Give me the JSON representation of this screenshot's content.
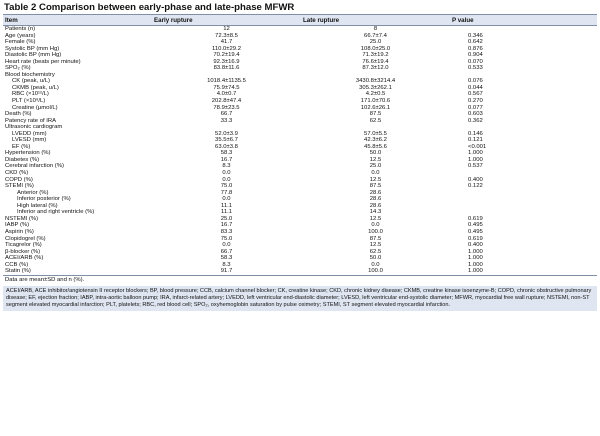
{
  "title": "Table 2 Comparison between early-phase and late-phase MFWR",
  "headers": [
    "Item",
    "Early rupture",
    "Late rupture",
    "P value"
  ],
  "rows": [
    {
      "label": "Patients (n)",
      "early": "12",
      "late": "8",
      "p": "",
      "indent": 0
    },
    {
      "label": "Age (years)",
      "early": "72.3±8.5",
      "late": "66.7±7.4",
      "p": "0.346",
      "indent": 0
    },
    {
      "label": "Female (%)",
      "early": "41.7",
      "late": "25.0",
      "p": "0.642",
      "indent": 0
    },
    {
      "label": "Systolic BP (mm Hg)",
      "early": "110.0±29.2",
      "late": "108.0±25.0",
      "p": "0.876",
      "indent": 0
    },
    {
      "label": "Diastolic BP (mm Hg)",
      "early": "70.2±19.4",
      "late": "71.3±19.2",
      "p": "0.904",
      "indent": 0
    },
    {
      "label": "Heart rate (beats per minute)",
      "early": "92.3±16.9",
      "late": "76.6±19.4",
      "p": "0.070",
      "indent": 0
    },
    {
      "label": "SPO₂ (%)",
      "early": "83.8±11.6",
      "late": "87.3±12.0",
      "p": "0.533",
      "indent": 0
    },
    {
      "label": "Blood biochemistry",
      "early": "",
      "late": "",
      "p": "",
      "indent": 0
    },
    {
      "label": "CK (peak, u/L)",
      "early": "1018.4±1135.5",
      "late": "3430.8±3214.4",
      "p": "0.076",
      "indent": 1
    },
    {
      "label": "CKMB (peak, u/L)",
      "early": "75.9±74.5",
      "late": "305.3±262.1",
      "p": "0.044",
      "indent": 1
    },
    {
      "label": "RBC (×10¹²/L)",
      "early": "4.0±0.7",
      "late": "4.2±0.5",
      "p": "0.567",
      "indent": 1
    },
    {
      "label": "PLT (×10⁹/L)",
      "early": "202.8±47.4",
      "late": "171.0±70.6",
      "p": "0.270",
      "indent": 1
    },
    {
      "label": "Creatine (μmol/L)",
      "early": "78.9±23.5",
      "late": "102.6±26.1",
      "p": "0.077",
      "indent": 1
    },
    {
      "label": "Death (%)",
      "early": "66.7",
      "late": "87.5",
      "p": "0.603",
      "indent": 0
    },
    {
      "label": "Patency rate of IRA",
      "early": "33.3",
      "late": "62.5",
      "p": "0.362",
      "indent": 0
    },
    {
      "label": "Ultrasonic cardiogram",
      "early": "",
      "late": "",
      "p": "",
      "indent": 0
    },
    {
      "label": "LVEDD (mm)",
      "early": "52.0±3.9",
      "late": "57.0±5.5",
      "p": "0.146",
      "indent": 1
    },
    {
      "label": "LVESD (mm)",
      "early": "35.5±6.7",
      "late": "42.3±6.2",
      "p": "0.121",
      "indent": 1
    },
    {
      "label": "EF (%)",
      "early": "63.0±3.8",
      "late": "45.8±5.6",
      "p": "<0.001",
      "indent": 1
    },
    {
      "label": "Hypertension (%)",
      "early": "58.3",
      "late": "50.0",
      "p": "1.000",
      "indent": 0
    },
    {
      "label": "Diabetes (%)",
      "early": "16.7",
      "late": "12.5",
      "p": "1.000",
      "indent": 0
    },
    {
      "label": "Cerebral infarction (%)",
      "early": "8.3",
      "late": "25.0",
      "p": "0.537",
      "indent": 0
    },
    {
      "label": "CKD (%)",
      "early": "0.0",
      "late": "0.0",
      "p": "",
      "indent": 0
    },
    {
      "label": "COPD (%)",
      "early": "0.0",
      "late": "12.5",
      "p": "0.400",
      "indent": 0
    },
    {
      "label": "STEMI (%)",
      "early": "75.0",
      "late": "87.5",
      "p": "0.122",
      "indent": 0
    },
    {
      "label": "Anterior (%)",
      "early": "77.8",
      "late": "28.6",
      "p": "",
      "indent": 2
    },
    {
      "label": "Inferior posterior (%)",
      "early": "0.0",
      "late": "28.6",
      "p": "",
      "indent": 2
    },
    {
      "label": "High lateral (%)",
      "early": "11.1",
      "late": "28.6",
      "p": "",
      "indent": 2
    },
    {
      "label": "Inferior and right ventricle (%)",
      "early": "11.1",
      "late": "14.3",
      "p": "",
      "indent": 2
    },
    {
      "label": "NSTEMI (%)",
      "early": "25.0",
      "late": "12.5",
      "p": "0.619",
      "indent": 0
    },
    {
      "label": "IABP (%)",
      "early": "16.7",
      "late": "0.0",
      "p": "0.495",
      "indent": 0
    },
    {
      "label": "Aspirin (%)",
      "early": "83.3",
      "late": "100.0",
      "p": "0.495",
      "indent": 0
    },
    {
      "label": "Clopidogrel (%)",
      "early": "75.0",
      "late": "87.5",
      "p": "0.619",
      "indent": 0
    },
    {
      "label": "Ticagrelor (%)",
      "early": "0.0",
      "late": "12.5",
      "p": "0.400",
      "indent": 0
    },
    {
      "label": "β-blocker (%)",
      "early": "66.7",
      "late": "62.5",
      "p": "1.000",
      "indent": 0
    },
    {
      "label": "ACEI/ARB (%)",
      "early": "58.3",
      "late": "50.0",
      "p": "1.000",
      "indent": 0
    },
    {
      "label": "CCB (%)",
      "early": "8.3",
      "late": "0.0",
      "p": "1.000",
      "indent": 0
    },
    {
      "label": "Statin (%)",
      "early": "91.7",
      "late": "100.0",
      "p": "1.000",
      "indent": 0
    }
  ],
  "note": "Data are mean±SD and n (%).",
  "abbreviations": "ACEI/ARB, ACE inhibitor/angiotensin II receptor blockers; BP, blood pressure; CCB, calcium channel blocker; CK, creatine kinase; CKD, chronic kidney disease; CKMB, creatine kinase isoenzyme-B; COPD, chronic obstructive pulmonary disease; EF, ejection fraction; IABP, intra-aortic balloon pump; IRA, infarct-related artery; LVEDD, left ventricular end-diastolic diameter; LVESD, left ventricular end-systolic diameter; MFWR, myocardial free wall rupture; NSTEMI, non-ST segment elevated myocardial infarction; PLT, platelets; RBC, red blood cell; SPO₂, oxyhemoglobin saturation by pulse oximetry; STEMI, ST segment elevated myocardial infarction."
}
